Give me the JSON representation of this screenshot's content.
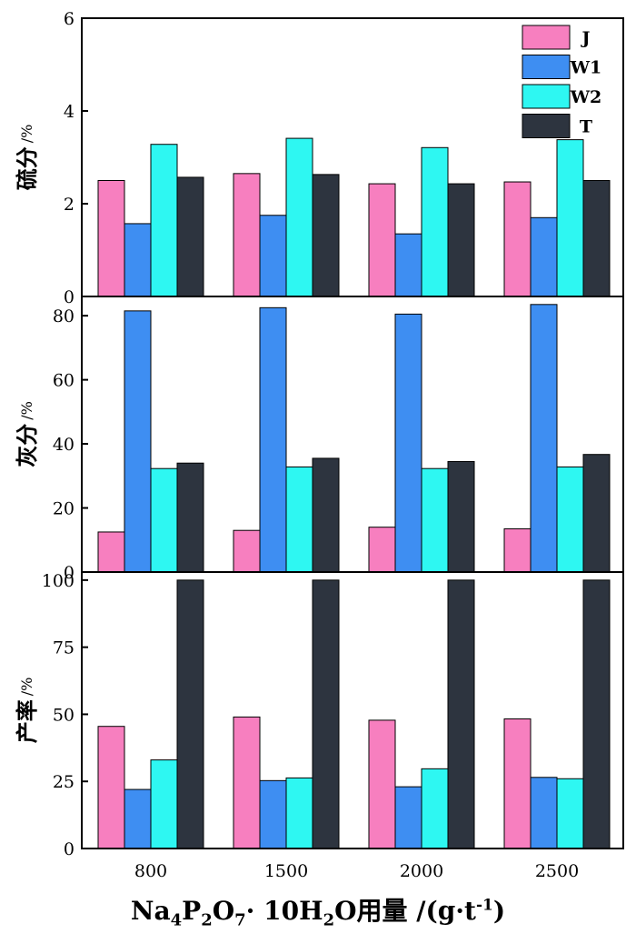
{
  "chart_data": [
    {
      "type": "bar",
      "categories": [
        "800",
        "1500",
        "2000",
        "2500"
      ],
      "ylabel_main": "硫分",
      "ylabel_unit": "/%",
      "ylim": [
        0,
        6
      ],
      "yticks": [
        0,
        2,
        4,
        6
      ],
      "legend": {
        "placement": "top-right"
      },
      "series": [
        {
          "name": "J",
          "color": "#f77fbf",
          "values": [
            2.5,
            2.65,
            2.43,
            2.47
          ]
        },
        {
          "name": "W1",
          "color": "#3e8ef2",
          "values": [
            1.57,
            1.75,
            1.35,
            1.7
          ]
        },
        {
          "name": "W2",
          "color": "#2ef7f2",
          "values": [
            3.28,
            3.41,
            3.21,
            3.38
          ]
        },
        {
          "name": "T",
          "color": "#2d343f",
          "values": [
            2.57,
            2.63,
            2.43,
            2.5
          ]
        }
      ]
    },
    {
      "type": "bar",
      "categories": [
        "800",
        "1500",
        "2000",
        "2500"
      ],
      "ylabel_main": "灰分",
      "ylabel_unit": "/%",
      "ylim": [
        0,
        86
      ],
      "yticks": [
        0,
        20,
        40,
        60,
        80
      ],
      "series": [
        {
          "name": "J",
          "color": "#f77fbf",
          "values": [
            12.5,
            13.0,
            14.0,
            13.5
          ]
        },
        {
          "name": "W1",
          "color": "#3e8ef2",
          "values": [
            81.5,
            82.5,
            80.5,
            83.5
          ]
        },
        {
          "name": "W2",
          "color": "#2ef7f2",
          "values": [
            32.3,
            32.8,
            32.3,
            32.8
          ]
        },
        {
          "name": "T",
          "color": "#2d343f",
          "values": [
            34.0,
            35.5,
            34.5,
            36.7
          ]
        }
      ]
    },
    {
      "type": "bar",
      "categories": [
        "800",
        "1500",
        "2000",
        "2500"
      ],
      "ylabel_main": "产率",
      "ylabel_unit": "/%",
      "ylim": [
        0,
        103
      ],
      "yticks": [
        0,
        25,
        50,
        75,
        100
      ],
      "series": [
        {
          "name": "J",
          "color": "#f77fbf",
          "values": [
            45.5,
            49.0,
            47.8,
            48.3
          ]
        },
        {
          "name": "W1",
          "color": "#3e8ef2",
          "values": [
            22.0,
            25.3,
            23.0,
            26.5
          ]
        },
        {
          "name": "W2",
          "color": "#2ef7f2",
          "values": [
            33.0,
            26.3,
            29.7,
            26.0
          ]
        },
        {
          "name": "T",
          "color": "#2d343f",
          "values": [
            100,
            100,
            100,
            100
          ]
        }
      ]
    }
  ],
  "xlabel_parts": {
    "na": "Na",
    "s4": "4",
    "p": "P",
    "s2": "2",
    "o": "O",
    "s7": "7",
    "mid": "· 10H",
    "s2b": "2",
    "o2": "O用量 /(g·t",
    "sup": "-1",
    "end": ")"
  }
}
